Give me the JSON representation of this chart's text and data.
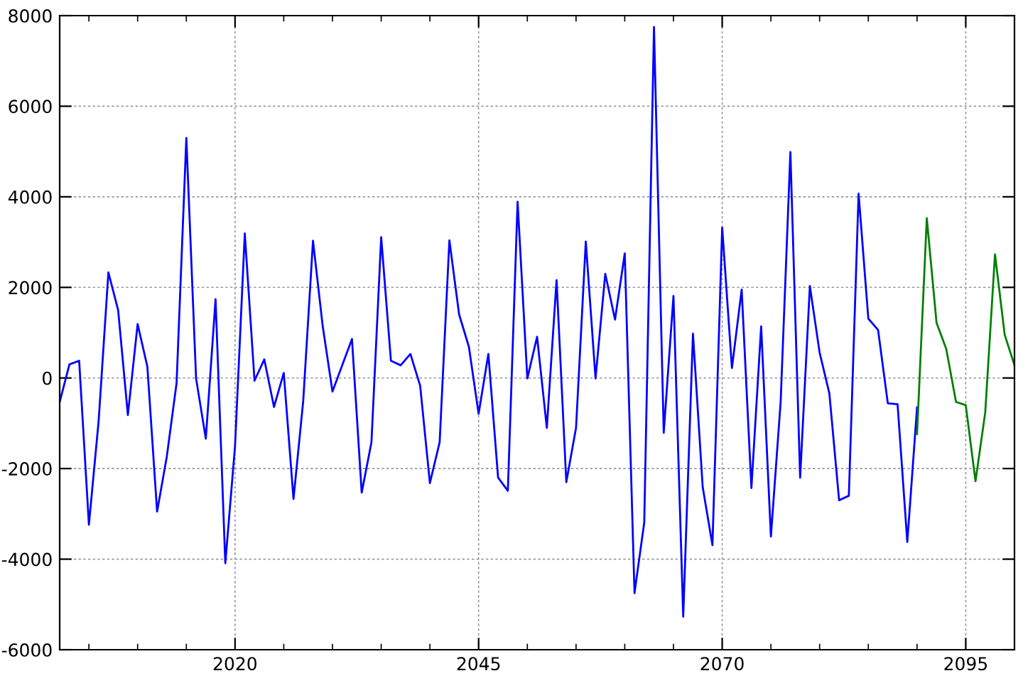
{
  "chart_data": {
    "type": "line",
    "xlim": [
      2002,
      2100
    ],
    "ylim": [
      -6000,
      8000
    ],
    "xticks": [
      {
        "value": 2005,
        "label": null
      },
      {
        "value": 2010,
        "label": null
      },
      {
        "value": 2015,
        "label": null
      },
      2020,
      {
        "value": 2025,
        "label": null
      },
      {
        "value": 2030,
        "label": null
      },
      {
        "value": 2035,
        "label": null
      },
      {
        "value": 2040,
        "label": null
      },
      2045,
      {
        "value": 2050,
        "label": null
      },
      {
        "value": 2055,
        "label": null
      },
      {
        "value": 2060,
        "label": null
      },
      {
        "value": 2065,
        "label": null
      },
      2070,
      {
        "value": 2075,
        "label": null
      },
      {
        "value": 2080,
        "label": null
      },
      {
        "value": 2085,
        "label": null
      },
      {
        "value": 2090,
        "label": null
      },
      2095
    ],
    "yticks": [
      -6000,
      -4000,
      -2000,
      0,
      2000,
      4000,
      6000,
      8000
    ],
    "grid": true,
    "line_style": "solid",
    "marker": "none",
    "series": [
      {
        "color": "#0000ff",
        "x": [
          2002,
          2003,
          2004,
          2005,
          2006,
          2007,
          2008,
          2009,
          2010,
          2011,
          2012,
          2013,
          2014,
          2015,
          2016,
          2017,
          2018,
          2019,
          2020,
          2021,
          2022,
          2023,
          2024,
          2025,
          2026,
          2027,
          2028,
          2029,
          2030,
          2031,
          2032,
          2033,
          2034,
          2035,
          2036,
          2037,
          2038,
          2039,
          2040,
          2041,
          2042,
          2043,
          2044,
          2045,
          2046,
          2047,
          2048,
          2049,
          2050,
          2051,
          2052,
          2053,
          2054,
          2055,
          2056,
          2057,
          2058,
          2059,
          2060,
          2061,
          2062,
          2063,
          2064,
          2065,
          2066,
          2067,
          2068,
          2069,
          2070,
          2071,
          2072,
          2073,
          2074,
          2075,
          2076,
          2077,
          2078,
          2079,
          2080,
          2081,
          2082,
          2083,
          2084,
          2085,
          2086,
          2087,
          2088,
          2089,
          2090
        ],
        "values": [
          -530,
          300,
          380,
          -3240,
          -950,
          2330,
          1500,
          -820,
          1190,
          250,
          -2950,
          -1730,
          -110,
          5300,
          -10,
          -1340,
          1740,
          -4090,
          -1500,
          3190,
          -60,
          410,
          -640,
          110,
          -2670,
          -500,
          3030,
          1140,
          -300,
          280,
          860,
          -2530,
          -1420,
          3110,
          380,
          280,
          530,
          -170,
          -2320,
          -1420,
          3040,
          1400,
          690,
          -790,
          530,
          -2200,
          -2490,
          3890,
          -10,
          910,
          -1100,
          2160,
          -2300,
          -1100,
          3010,
          -10,
          2300,
          1290,
          2750,
          -4750,
          -3190,
          7750,
          -1210,
          1810,
          -5270,
          980,
          -2410,
          -3690,
          3320,
          220,
          1950,
          -2430,
          1140,
          -3500,
          -530,
          4990,
          -2200,
          2030,
          560,
          -340,
          -2700,
          -2600,
          4070,
          1310,
          1060,
          -560,
          -580,
          -3620,
          -650
        ]
      },
      {
        "color": "#008000",
        "x": [
          2090,
          2091,
          2092,
          2093,
          2094,
          2095,
          2096,
          2097,
          2098,
          2099,
          2100
        ],
        "values": [
          -1240,
          3530,
          1220,
          640,
          -530,
          -600,
          -2280,
          -760,
          2730,
          950,
          280
        ]
      }
    ]
  }
}
